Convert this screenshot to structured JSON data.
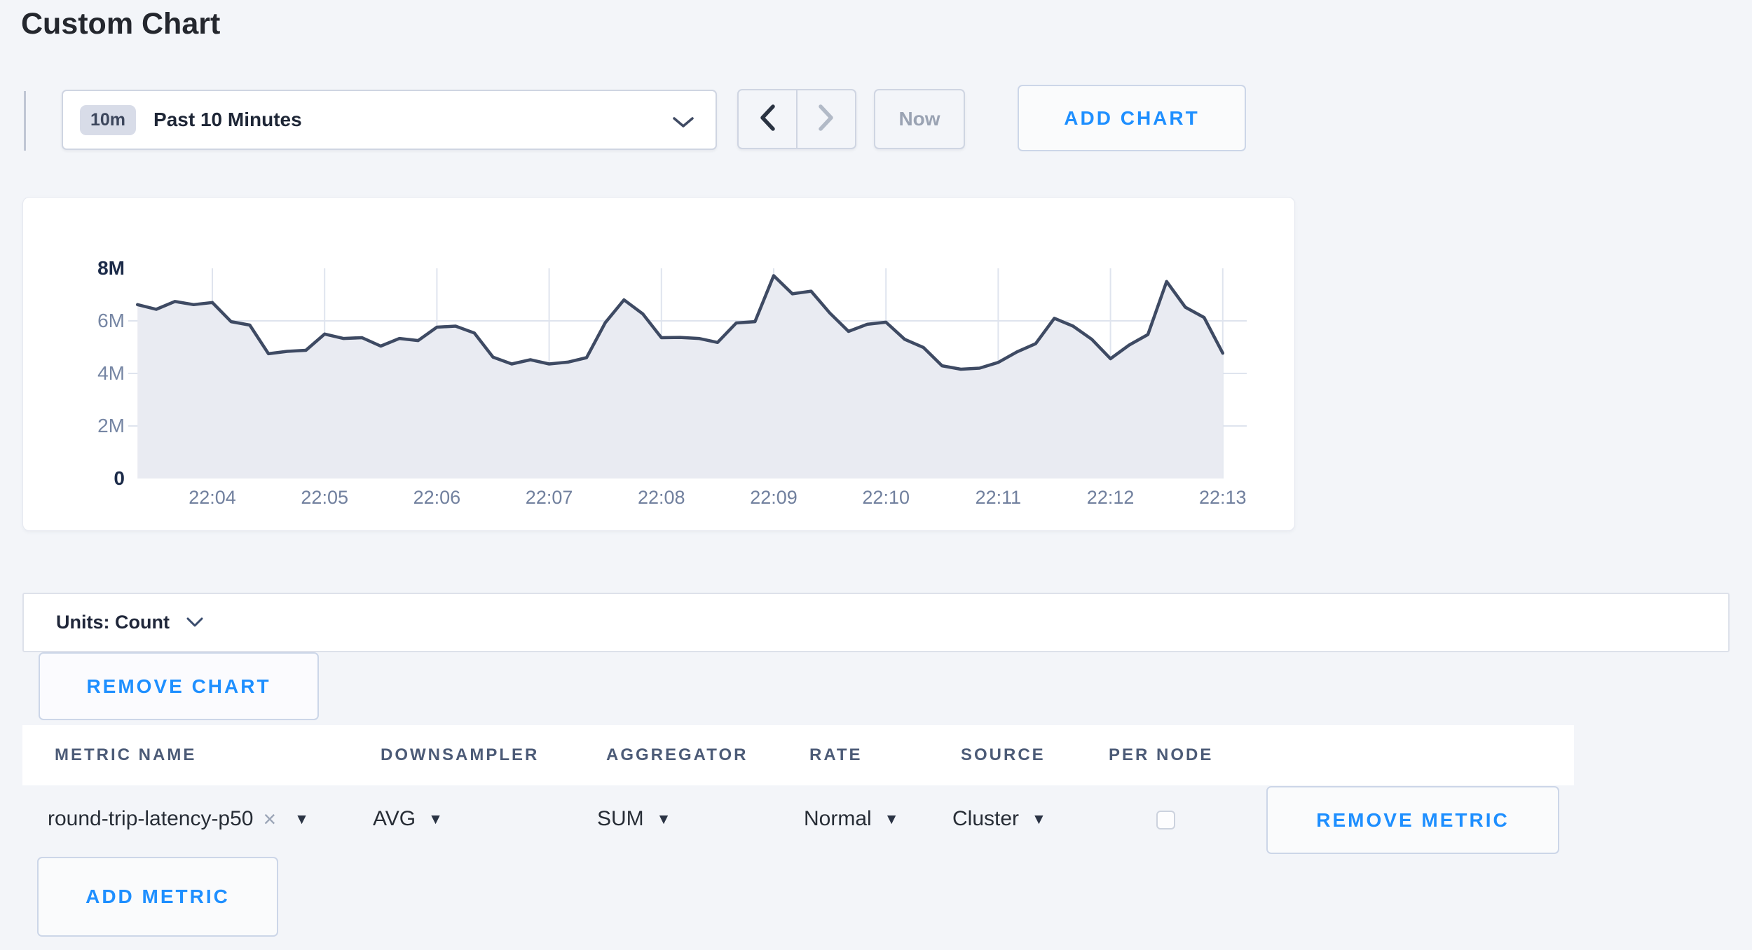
{
  "page": {
    "title": "Custom Chart"
  },
  "toolbar": {
    "range_badge": "10m",
    "range_label": "Past 10 Minutes",
    "now_label": "Now",
    "add_chart_label": "ADD CHART"
  },
  "icons": {
    "clear": "×",
    "caret_down": "▼"
  },
  "chart_data": {
    "type": "area",
    "series_name": "round-trip-latency-p50",
    "unit": "Count",
    "x_tick_labels": [
      "22:04",
      "22:05",
      "22:06",
      "22:07",
      "22:08",
      "22:09",
      "22:10",
      "22:11",
      "22:12",
      "22:13"
    ],
    "y_tick_labels": [
      "0",
      "2M",
      "4M",
      "6M",
      "8M"
    ],
    "y_tick_values_millions": [
      0,
      2,
      4,
      6,
      8
    ],
    "ylim_millions": [
      0,
      8
    ],
    "grid": true,
    "start_offset_seconds_before_first_tick": 40,
    "interval_seconds": 10,
    "values_millions": [
      6.62,
      6.44,
      6.74,
      6.62,
      6.7,
      5.97,
      5.84,
      4.75,
      4.84,
      4.88,
      5.5,
      5.33,
      5.36,
      5.04,
      5.33,
      5.25,
      5.76,
      5.8,
      5.54,
      4.62,
      4.36,
      4.52,
      4.36,
      4.43,
      4.6,
      5.93,
      6.8,
      6.27,
      5.36,
      5.37,
      5.33,
      5.18,
      5.92,
      5.97,
      7.72,
      7.03,
      7.13,
      6.3,
      5.6,
      5.87,
      5.95,
      5.3,
      4.99,
      4.29,
      4.16,
      4.2,
      4.42,
      4.82,
      5.13,
      6.1,
      5.8,
      5.3,
      4.56,
      5.08,
      5.48,
      7.5,
      6.52,
      6.13,
      4.77
    ]
  },
  "units_bar": {
    "label": "Units: Count"
  },
  "chart_actions": {
    "remove_chart_label": "REMOVE CHART"
  },
  "metrics_table": {
    "headers": [
      "METRIC NAME",
      "DOWNSAMPLER",
      "AGGREGATOR",
      "RATE",
      "SOURCE",
      "PER NODE"
    ],
    "rows": [
      {
        "metric_name": "round-trip-latency-p50",
        "downsampler": "AVG",
        "aggregator": "SUM",
        "rate": "Normal",
        "source": "Cluster",
        "per_node_checked": false,
        "remove_label": "REMOVE METRIC"
      }
    ],
    "add_metric_label": "ADD METRIC"
  },
  "colors": {
    "accent_blue": "#1e8fff",
    "chart_line": "#3e4a63",
    "chart_fill": "#e9ebf2",
    "chart_grid": "#dfe4ee",
    "tick_strong": "#1c2b49",
    "tick_dim": "#7686a4",
    "x_tick": "#71809e"
  }
}
